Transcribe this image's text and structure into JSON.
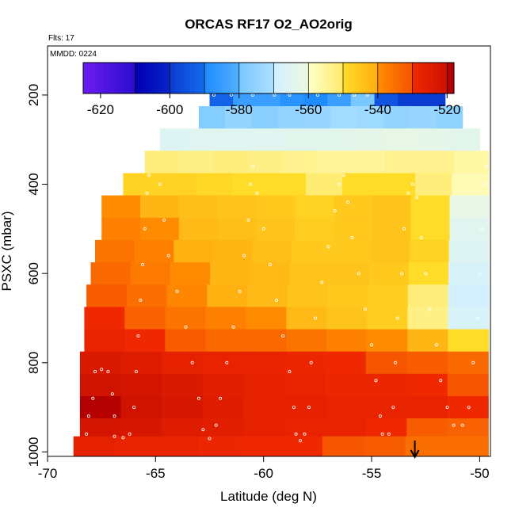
{
  "chart_data": {
    "type": "heatmap",
    "title": "ORCAS RF17 O2_AO2orig",
    "flights_note": "Flts: 17",
    "mmdd_note": "MMDD: 0224",
    "xlabel": "Latitude (deg N)",
    "ylabel": "PSXC (mbar)",
    "xlim": [
      -70,
      -49.5
    ],
    "ylim": [
      1010,
      90
    ],
    "y_reversed": true,
    "x_ticks": [
      -70,
      -65,
      -60,
      -55,
      -50
    ],
    "y_ticks": [
      200,
      400,
      600,
      800,
      1000
    ],
    "colorbar": {
      "range": [
        -625,
        -518
      ],
      "ticks": [
        -620,
        -600,
        -580,
        -560,
        -540,
        -520
      ],
      "band_edges": [
        -625,
        -610,
        -600,
        -590,
        -580,
        -570,
        -560,
        -550,
        -540,
        -530,
        -520,
        -518
      ],
      "colors": [
        "#6a1cf0",
        "#0000b4",
        "#0a3cd2",
        "#1e8cff",
        "#78c8ff",
        "#d2f0ff",
        "#ffffc8",
        "#ffdc28",
        "#ff8c00",
        "#f02800",
        "#b40000"
      ]
    },
    "pressure_levels": [
      {
        "p_top": 175,
        "p_bottom": 225,
        "lat_min": -62.5,
        "lat_max": -51.6,
        "values_west_to_east": [
          -592,
          -585,
          -585,
          -588,
          -590,
          -585,
          -580,
          -595,
          -600,
          -600
        ]
      },
      {
        "p_top": 225,
        "p_bottom": 275,
        "lat_min": -63.0,
        "lat_max": -50.8,
        "values_west_to_east": [
          -578,
          -575,
          -577,
          -575,
          -574,
          -572,
          -573,
          -575,
          -574,
          -576
        ]
      },
      {
        "p_top": 275,
        "p_bottom": 325,
        "lat_min": -64.8,
        "lat_max": -50.0,
        "values_west_to_east": [
          -566,
          -565,
          -565,
          -565,
          -564,
          -564,
          -563,
          -562,
          -563,
          -564
        ]
      },
      {
        "p_top": 325,
        "p_bottom": 375,
        "lat_min": -65.5,
        "lat_max": -49.6,
        "values_west_to_east": [
          -552,
          -553,
          -552,
          -553,
          -554,
          -555,
          -555,
          -554,
          -554,
          -556
        ]
      },
      {
        "p_top": 375,
        "p_bottom": 425,
        "lat_min": -66.5,
        "lat_max": -49.6,
        "values_west_to_east": [
          -548,
          -548,
          -549,
          -550,
          -550,
          -551,
          -550,
          -550,
          -552,
          -558
        ]
      },
      {
        "p_top": 425,
        "p_bottom": 475,
        "lat_min": -67.5,
        "lat_max": -49.6,
        "values_west_to_east": [
          -540,
          -542,
          -544,
          -545,
          -546,
          -548,
          -546,
          -545,
          -550,
          -562
        ]
      },
      {
        "p_top": 475,
        "p_bottom": 525,
        "lat_min": -67.5,
        "lat_max": -49.6,
        "values_west_to_east": [
          -538,
          -540,
          -543,
          -544,
          -545,
          -547,
          -546,
          -545,
          -550,
          -565
        ]
      },
      {
        "p_top": 525,
        "p_bottom": 575,
        "lat_min": -67.8,
        "lat_max": -49.6,
        "values_west_to_east": [
          -536,
          -538,
          -541,
          -542,
          -544,
          -546,
          -546,
          -545,
          -548,
          -566
        ]
      },
      {
        "p_top": 575,
        "p_bottom": 625,
        "lat_min": -68.0,
        "lat_max": -49.6,
        "values_west_to_east": [
          -534,
          -537,
          -540,
          -542,
          -543,
          -545,
          -545,
          -546,
          -550,
          -568
        ]
      },
      {
        "p_top": 625,
        "p_bottom": 675,
        "lat_min": -68.2,
        "lat_max": -49.6,
        "values_west_to_east": [
          -532,
          -535,
          -539,
          -541,
          -543,
          -545,
          -546,
          -547,
          -552,
          -570
        ]
      },
      {
        "p_top": 675,
        "p_bottom": 725,
        "lat_min": -68.3,
        "lat_max": -49.6,
        "values_west_to_east": [
          -530,
          -533,
          -536,
          -538,
          -540,
          -543,
          -545,
          -547,
          -553,
          -568
        ]
      },
      {
        "p_top": 725,
        "p_bottom": 775,
        "lat_min": -68.3,
        "lat_max": -49.6,
        "values_west_to_east": [
          -528,
          -530,
          -532,
          -534,
          -534,
          -536,
          -538,
          -540,
          -542,
          -550
        ]
      },
      {
        "p_top": 775,
        "p_bottom": 825,
        "lat_min": -68.5,
        "lat_max": -49.6,
        "values_west_to_east": [
          -524,
          -525,
          -527,
          -528,
          -528,
          -529,
          -530,
          -531,
          -532,
          -534
        ]
      },
      {
        "p_top": 825,
        "p_bottom": 875,
        "lat_min": -68.5,
        "lat_max": -49.6,
        "values_west_to_east": [
          -521,
          -522,
          -524,
          -526,
          -527,
          -528,
          -529,
          -529,
          -530,
          -531
        ]
      },
      {
        "p_top": 875,
        "p_bottom": 925,
        "lat_min": -68.5,
        "lat_max": -49.6,
        "values_west_to_east": [
          -520,
          -521,
          -523,
          -525,
          -527,
          -527,
          -528,
          -528,
          -528,
          -530
        ]
      },
      {
        "p_top": 925,
        "p_bottom": 965,
        "lat_min": -68.5,
        "lat_max": -49.6,
        "values_west_to_east": [
          -522,
          -523,
          -525,
          -526,
          -527,
          -528,
          -528,
          -530,
          -532,
          -533
        ]
      },
      {
        "p_top": 965,
        "p_bottom": 1010,
        "lat_min": -68.8,
        "lat_max": -49.6,
        "values_west_to_east": [
          -527,
          -528,
          -528,
          -529,
          -530,
          -530,
          -531,
          -532,
          -535,
          -535
        ]
      }
    ],
    "flight_track": [
      [
        -68.2,
        960
      ],
      [
        -68.1,
        920
      ],
      [
        -67.9,
        880
      ],
      [
        -67.8,
        820
      ],
      [
        -67.5,
        815
      ],
      [
        -67.2,
        820
      ],
      [
        -67.0,
        870
      ],
      [
        -66.9,
        920
      ],
      [
        -66.9,
        965
      ],
      [
        -66.5,
        968
      ],
      [
        -66.2,
        960
      ],
      [
        -66.0,
        900
      ],
      [
        -65.9,
        820
      ],
      [
        -65.8,
        740
      ],
      [
        -65.7,
        660
      ],
      [
        -65.6,
        580
      ],
      [
        -65.5,
        500
      ],
      [
        -65.4,
        420
      ],
      [
        -65.3,
        380
      ],
      [
        -64.8,
        400
      ],
      [
        -64.6,
        480
      ],
      [
        -64.4,
        560
      ],
      [
        -64.0,
        640
      ],
      [
        -63.6,
        720
      ],
      [
        -63.3,
        800
      ],
      [
        -63.0,
        880
      ],
      [
        -62.8,
        950
      ],
      [
        -62.5,
        970
      ],
      [
        -62.2,
        940
      ],
      [
        -62.0,
        880
      ],
      [
        -61.7,
        800
      ],
      [
        -61.4,
        720
      ],
      [
        -61.1,
        640
      ],
      [
        -60.9,
        560
      ],
      [
        -60.7,
        480
      ],
      [
        -60.6,
        400
      ],
      [
        -60.5,
        360
      ],
      [
        -60.3,
        420
      ],
      [
        -60.0,
        500
      ],
      [
        -59.7,
        580
      ],
      [
        -59.4,
        660
      ],
      [
        -59.1,
        740
      ],
      [
        -58.8,
        820
      ],
      [
        -58.6,
        900
      ],
      [
        -58.5,
        960
      ],
      [
        -58.3,
        975
      ],
      [
        -58.1,
        960
      ],
      [
        -57.9,
        900
      ],
      [
        -57.8,
        800
      ],
      [
        -57.6,
        700
      ],
      [
        -57.3,
        620
      ],
      [
        -57.0,
        540
      ],
      [
        -56.7,
        460
      ],
      [
        -56.5,
        400
      ],
      [
        -56.3,
        380
      ],
      [
        -56.1,
        440
      ],
      [
        -55.9,
        520
      ],
      [
        -55.6,
        600
      ],
      [
        -55.3,
        680
      ],
      [
        -55.0,
        760
      ],
      [
        -54.8,
        840
      ],
      [
        -54.6,
        920
      ],
      [
        -54.5,
        960
      ],
      [
        -54.2,
        960
      ],
      [
        -54.0,
        900
      ],
      [
        -53.9,
        800
      ],
      [
        -53.8,
        700
      ],
      [
        -53.6,
        600
      ],
      [
        -53.5,
        500
      ],
      [
        -53.3,
        420
      ],
      [
        -53.1,
        400
      ],
      [
        -52.9,
        430
      ],
      [
        -52.7,
        520
      ],
      [
        -52.5,
        600
      ],
      [
        -52.3,
        680
      ],
      [
        -52.0,
        760
      ],
      [
        -51.8,
        840
      ],
      [
        -51.5,
        900
      ],
      [
        -51.2,
        940
      ],
      [
        -50.8,
        940
      ],
      [
        -50.5,
        900
      ],
      [
        -50.3,
        800
      ],
      [
        -50.1,
        700
      ],
      [
        -50.0,
        600
      ],
      [
        -49.9,
        500
      ],
      [
        -49.8,
        400
      ],
      [
        -49.7,
        360
      ],
      [
        -62.3,
        200
      ],
      [
        -61.5,
        200
      ],
      [
        -60.5,
        200
      ],
      [
        -59.5,
        200
      ],
      [
        -58.8,
        200
      ],
      [
        -57.5,
        200
      ],
      [
        -56.5,
        200
      ],
      [
        -55.8,
        200
      ],
      [
        -55.2,
        200
      ]
    ],
    "arrow_marker": {
      "lat": -53.0
    }
  }
}
